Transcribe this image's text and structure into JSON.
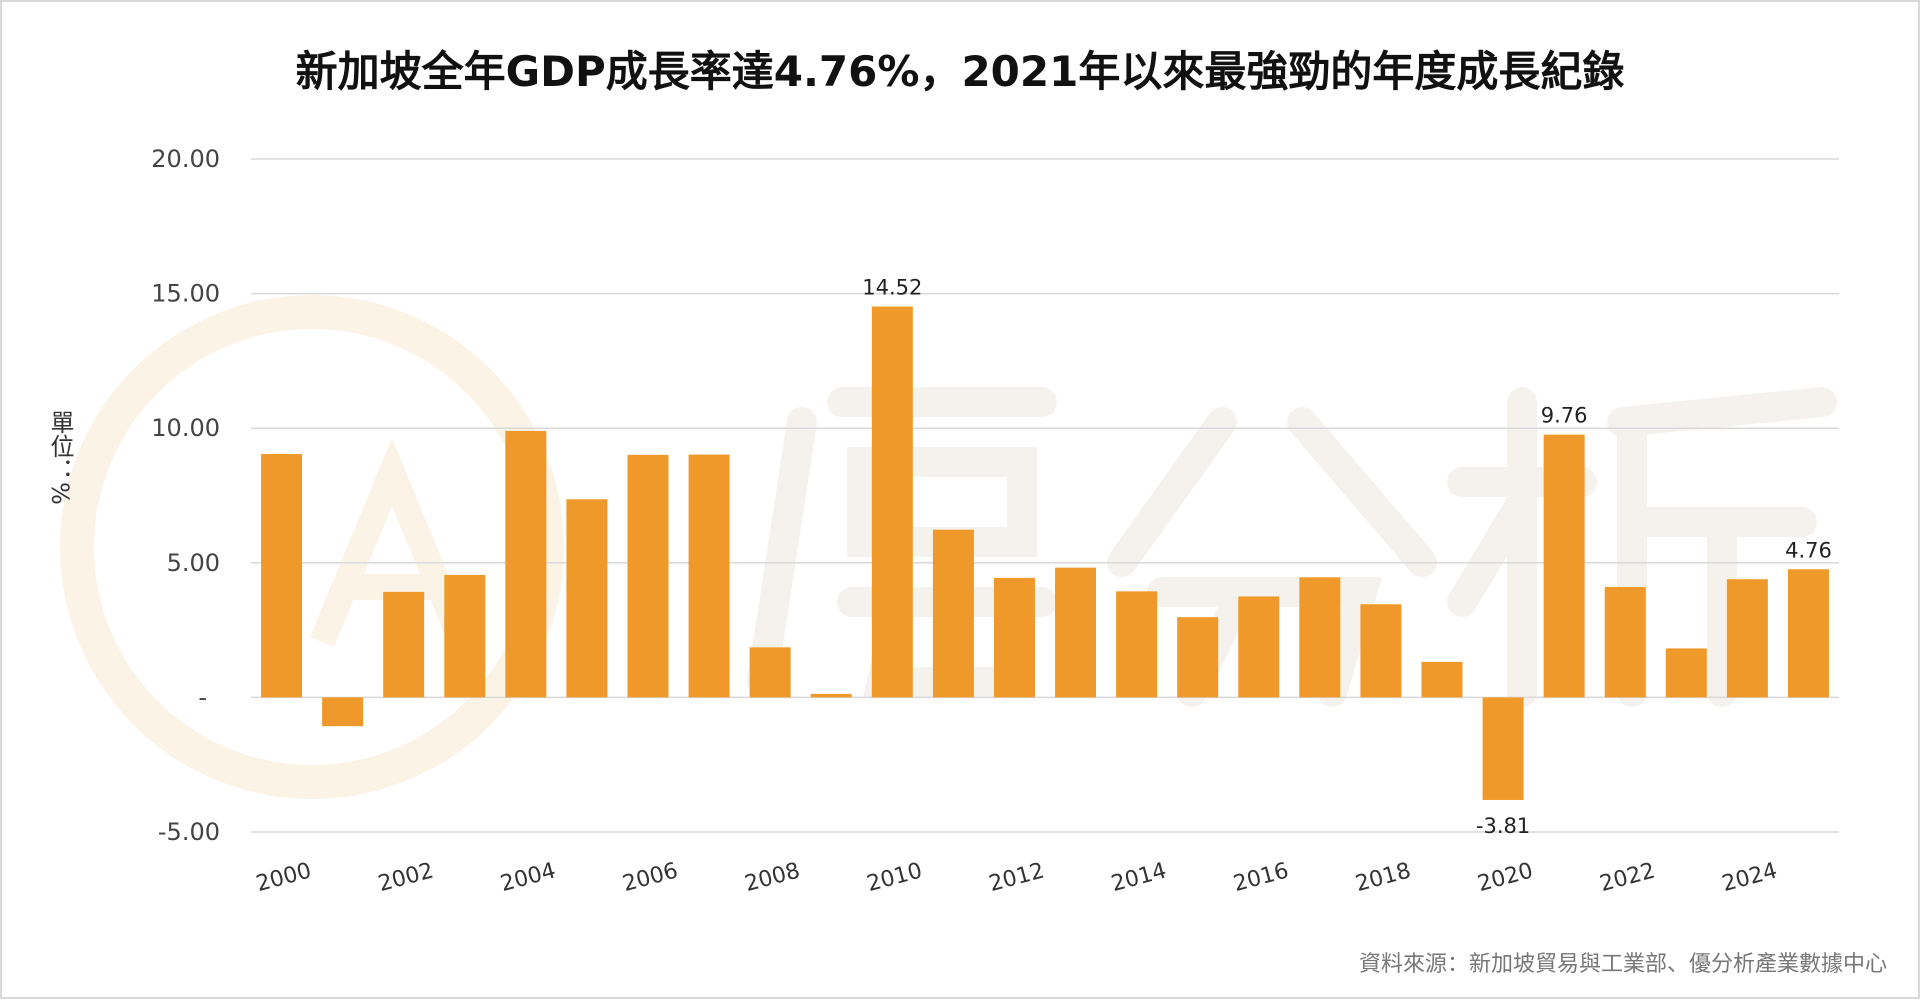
{
  "chart_data": {
    "type": "bar",
    "title": "新加坡全年GDP成長率達4.76%，2021年以來最強勁的年度成長紀錄",
    "ylabel": "單位：%",
    "xlabel": "",
    "categories": [
      "2000",
      "2001",
      "2002",
      "2003",
      "2004",
      "2005",
      "2006",
      "2007",
      "2008",
      "2009",
      "2010",
      "2011",
      "2012",
      "2013",
      "2014",
      "2015",
      "2016",
      "2017",
      "2018",
      "2019",
      "2020",
      "2021",
      "2022",
      "2023",
      "2024",
      "2025"
    ],
    "values": [
      9.04,
      -1.07,
      3.92,
      4.55,
      9.9,
      7.36,
      9.01,
      9.02,
      1.86,
      0.13,
      14.52,
      6.23,
      4.44,
      4.82,
      3.94,
      2.98,
      3.75,
      4.46,
      3.46,
      1.32,
      -3.81,
      9.76,
      4.1,
      1.82,
      4.39,
      4.76
    ],
    "x_tick_labels": [
      "2000",
      "2002",
      "2004",
      "2006",
      "2008",
      "2010",
      "2012",
      "2014",
      "2016",
      "2018",
      "2020",
      "2022",
      "2024"
    ],
    "y_ticks": [
      20,
      15,
      10,
      5,
      0,
      -5
    ],
    "y_tick_labels": [
      "20.00",
      "15.00",
      "10.00",
      "5.00",
      "-",
      "-5.00"
    ],
    "ylim": [
      -5,
      20
    ],
    "data_labels": {
      "2010": "14.52",
      "2020": "-3.81",
      "2021": "9.76",
      "2025": "4.76"
    },
    "grid": true,
    "bar_color": "#F0992B",
    "source": "資料來源：新加坡貿易與工業部、優分析產業數據中心"
  },
  "watermark": {
    "text": "優分析",
    "color": "#f5f2ee"
  }
}
